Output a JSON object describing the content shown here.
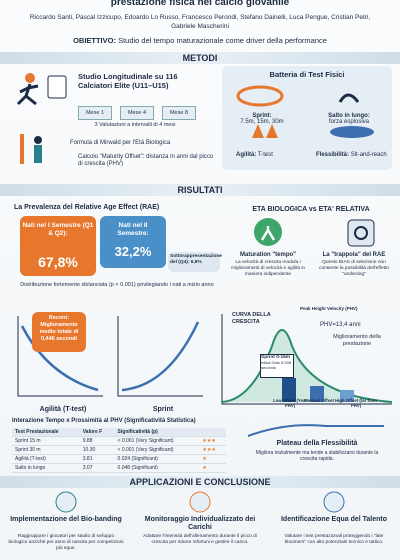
{
  "header": {
    "title": "prestazione fisica nel calcio giovanile",
    "authors": "Riccardo Santi, Pascal Izzicupo, Edoardo Lo Russo, Francesco Perondi, Stefano Dainelli, Luca Pengue, Cristian Petri, Gabriele Mascherini",
    "objective_label": "OBIETTIVO:",
    "objective": "Studio del tempo maturazionale come driver della performance"
  },
  "methods": {
    "heading": "METODI",
    "study": "Studio Longitudinale su 116 Calciatori Elite (U11–U15)",
    "months": [
      "Mese 1",
      "Mese 4",
      "Mese 8"
    ],
    "valuations": "3 Valutazioni a intervalli di 4 mesi",
    "formula": "Formula di Mirwald per l'Età Biologica",
    "maturity": "Calcolo \"Maturity Offset\": distanza in anni dal picco di crescita (PHV)",
    "battery_title": "Batteria di Test Fisici",
    "tests": [
      {
        "name": "Sprint:",
        "detail": "7.5m, 15m, 30m"
      },
      {
        "name": "Salto in lungo:",
        "detail": "forza esplosiva"
      },
      {
        "name": "Agilità:",
        "detail": "T-test"
      },
      {
        "name": "Flessibilità:",
        "detail": "Sit-and-reach"
      }
    ]
  },
  "results": {
    "heading": "RISULTATI",
    "rae_title": "La Prevalenza del Relative Age Effect (RAE)",
    "first_label": "Nati nel I Semestre (Q1 & Q2):",
    "first_value": "67,8%",
    "second_label": "Nati nel II Semestre:",
    "second_value": "32,2%",
    "q4": "Sottorappresentazione del (Q4): 6,9%",
    "distribution": "Distribuzione fortemente sbilanciata (p < 0.001) privilegiando i nati a inizio anno",
    "bio_title": "ETA BIOLOGICA vs ETA' RELATIVA",
    "tempo_title": "Maturation \"tempo\"",
    "tempo_text": "La velocità di crescita modula i miglioramenti di velocità e agilità in maniera indipendente",
    "trap_title": "La \"trappola\" del RAE",
    "trap_text": "Questo BIAS di selezione non consente la possibilità dell'effetto \"underdog\"",
    "callout": "Recent: Miglioramento medio totale di 0,446 secondi",
    "agility_label": "Agilità (T-test)",
    "sprint_label": "Sprint",
    "curve_title": "CURVA DELLA CRESCITA",
    "phv_label": "Peak Height Velocity (PHV)",
    "phv_age": "PHV=13,4 anni",
    "improvement": "Miglioramento della prestazione",
    "sprint_box": "Sprint 0-15m",
    "initial_gain": "Initial Gain 0.008 seconds",
    "offsets": [
      "Low Offset (Year PHV)",
      "Medium Offset",
      "High Offset (far from PHV)"
    ],
    "table_title": "Interazione Tempo x Prossimità al PHV (Significatività Statistica)",
    "table_headers": [
      "Test Prestazionale",
      "Valore F",
      "Significatività (p)"
    ],
    "table_rows": [
      [
        "Sprint 15 m",
        "9.88",
        "< 0.001 (Very Significant)",
        "★★★"
      ],
      [
        "Sprint 30 m",
        "10.30",
        "< 0.001 (Very Significant)",
        "★★★"
      ],
      [
        "Agilità (T-test)",
        "3.81",
        "0.024 (Significant)",
        "★"
      ],
      [
        "Salto in lungo",
        "3.07",
        "0.048 (Significant)",
        "★"
      ]
    ],
    "plateau_title": "Plateau della Flessibilità",
    "plateau_text": "Migliora inizialmente ma tende a stabilizzarsi durante la crescita rapida."
  },
  "applications": {
    "heading": "APPLICAZIONI E CONCLUSIONE",
    "items": [
      {
        "title": "Implementazione del Bio-banding",
        "text": "Raggruppare i giocatori per stadio di sviluppo biologico anziché per anno di nascita per competizioni più eque."
      },
      {
        "title": "Monitoraggio Individualizzato dei Carichi",
        "text": "Adattare l'intensità dell'allenamento durante il picco di crescita per ridurre infortuni e gestire il carico."
      },
      {
        "title": "Identificazione Equa del Talento",
        "text": "Valutare i test prestazionali proteggendo i \"late bloomers\" con alto potenziale tecnico e tattico."
      }
    ]
  }
}
